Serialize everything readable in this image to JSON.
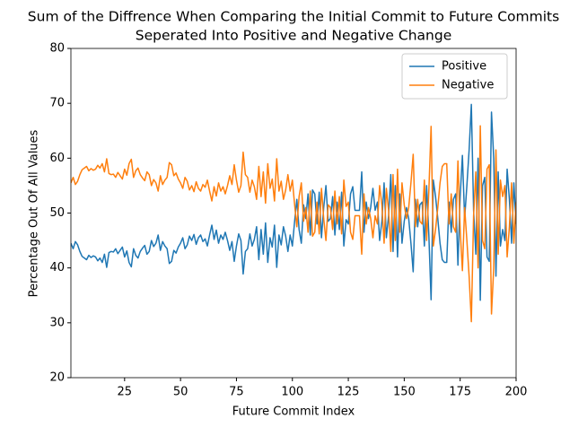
{
  "chart_data": {
    "type": "line",
    "title": "Sum of the Diffrence When Comparing the Initial Commit to Future Commits",
    "subtitle": "Seperated Into Positive and Negative Change",
    "xlabel": "Future Commit Index",
    "ylabel": "Percentage Out Of All Values",
    "xlim": [
      1,
      200
    ],
    "xticks": [
      25,
      50,
      75,
      100,
      125,
      150,
      175,
      200
    ],
    "ylim": [
      20,
      80
    ],
    "yticks": [
      20,
      30,
      40,
      50,
      60,
      70,
      80
    ],
    "legend": "upper right",
    "grid": false,
    "x": [
      1,
      2,
      3,
      4,
      5,
      6,
      7,
      8,
      9,
      10,
      11,
      12,
      13,
      14,
      15,
      16,
      17,
      18,
      19,
      20,
      21,
      22,
      23,
      24,
      25,
      26,
      27,
      28,
      29,
      30,
      31,
      32,
      33,
      34,
      35,
      36,
      37,
      38,
      39,
      40,
      41,
      42,
      43,
      44,
      45,
      46,
      47,
      48,
      49,
      50,
      51,
      52,
      53,
      54,
      55,
      56,
      57,
      58,
      59,
      60,
      61,
      62,
      63,
      64,
      65,
      66,
      67,
      68,
      69,
      70,
      71,
      72,
      73,
      74,
      75,
      76,
      77,
      78,
      79,
      80,
      81,
      82,
      83,
      84,
      85,
      86,
      87,
      88,
      89,
      90,
      91,
      92,
      93,
      94,
      95,
      96,
      97,
      98,
      99,
      100,
      101,
      102,
      103,
      104,
      105,
      106,
      107,
      108,
      109,
      110,
      111,
      112,
      113,
      114,
      115,
      116,
      117,
      118,
      119,
      120,
      121,
      122,
      123,
      124,
      125,
      126,
      127,
      128,
      129,
      130,
      131,
      132,
      133,
      134,
      135,
      136,
      137,
      138,
      139,
      140,
      141,
      142,
      143,
      144,
      145,
      146,
      147,
      148,
      149,
      150,
      151,
      152,
      153,
      154,
      155,
      156,
      157,
      158,
      159,
      160,
      161,
      162,
      163,
      164,
      165,
      166,
      167,
      168,
      169,
      170,
      171,
      172,
      173,
      174,
      175,
      176,
      177,
      178,
      179,
      180,
      181,
      182,
      183,
      184,
      185,
      186,
      187,
      188,
      189,
      190,
      191,
      192,
      193,
      194,
      195,
      196,
      197,
      198,
      199,
      200
    ],
    "series": [
      {
        "name": "Positive",
        "color": "#1f77b4",
        "values": [
          44.5,
          43.5,
          44.8,
          44.2,
          43.0,
          42.1,
          41.8,
          41.5,
          42.3,
          41.9,
          42.2,
          42.0,
          41.3,
          41.8,
          41.0,
          42.5,
          40.1,
          42.8,
          43.0,
          42.9,
          43.5,
          42.6,
          43.2,
          43.8,
          42.0,
          43.1,
          41.0,
          40.2,
          43.5,
          42.3,
          41.8,
          43.0,
          43.6,
          44.1,
          42.5,
          43.0,
          45.0,
          43.9,
          44.5,
          46.0,
          43.2,
          44.8,
          44.0,
          43.5,
          40.8,
          41.2,
          43.2,
          42.7,
          43.8,
          44.5,
          45.5,
          43.5,
          44.2,
          45.8,
          45.0,
          46.1,
          44.3,
          45.5,
          46.0,
          44.8,
          45.3,
          44.0,
          46.0,
          47.8,
          45.2,
          46.9,
          44.5,
          46.0,
          45.2,
          46.5,
          45.0,
          43.2,
          44.8,
          41.2,
          44.0,
          46.2,
          45.0,
          38.9,
          43.0,
          43.5,
          46.2,
          44.0,
          45.2,
          47.5,
          41.5,
          47.0,
          42.5,
          48.2,
          41.0,
          45.5,
          43.8,
          47.8,
          40.1,
          46.0,
          44.2,
          47.5,
          45.8,
          43.0,
          46.0,
          44.0,
          48.5,
          52.5,
          47.0,
          44.5,
          51.5,
          49.0,
          53.5,
          46.0,
          54.2,
          53.5,
          48.0,
          53.8,
          45.5,
          51.0,
          55.0,
          48.5,
          49.0,
          53.0,
          46.0,
          52.0,
          47.0,
          53.8,
          44.0,
          48.8,
          48.0,
          53.5,
          54.8,
          50.5,
          50.5,
          50.5,
          57.5,
          46.5,
          52.0,
          49.0,
          51.0,
          54.5,
          50.5,
          52.0,
          45.0,
          48.5,
          55.5,
          45.5,
          49.5,
          57.0,
          43.0,
          55.0,
          42.0,
          53.5,
          44.5,
          48.5,
          51.0,
          49.0,
          44.5,
          39.3,
          52.5,
          47.5,
          51.5,
          52.0,
          44.0,
          55.0,
          46.0,
          34.2,
          56.0,
          53.0,
          49.0,
          44.5,
          41.5,
          41.0,
          41.0,
          52.0,
          46.5,
          52.5,
          53.5,
          40.5,
          53.0,
          60.5,
          49.0,
          55.0,
          61.5,
          69.8,
          50.5,
          42.5,
          60.0,
          34.1,
          55.0,
          56.5,
          42.0,
          41.2,
          68.4,
          60.0,
          38.5,
          57.5,
          44.0,
          47.0,
          45.0,
          58.0,
          52.5,
          44.5,
          55.5,
          48.0
        ]
      },
      {
        "name": "Negative",
        "color": "#ff7f0e",
        "values": [
          55.5,
          56.5,
          55.2,
          55.8,
          57.0,
          57.9,
          58.2,
          58.5,
          57.7,
          58.1,
          57.8,
          58.0,
          58.7,
          58.2,
          59.0,
          57.5,
          59.9,
          57.2,
          57.0,
          57.1,
          56.5,
          57.4,
          56.8,
          56.2,
          58.0,
          56.9,
          59.0,
          59.8,
          56.5,
          57.7,
          58.2,
          57.0,
          56.4,
          55.9,
          57.5,
          57.0,
          55.0,
          56.1,
          55.5,
          54.0,
          56.8,
          55.2,
          56.0,
          56.5,
          59.2,
          58.8,
          56.8,
          57.3,
          56.2,
          55.5,
          54.5,
          56.5,
          55.8,
          54.2,
          55.0,
          53.9,
          55.7,
          54.5,
          54.0,
          55.2,
          54.7,
          56.0,
          54.0,
          52.2,
          54.8,
          53.1,
          55.5,
          54.0,
          54.8,
          53.5,
          55.0,
          56.8,
          55.2,
          58.8,
          56.0,
          53.8,
          55.0,
          61.1,
          57.0,
          56.5,
          53.8,
          56.0,
          54.8,
          52.5,
          58.5,
          53.0,
          57.5,
          51.8,
          59.0,
          54.5,
          56.2,
          52.2,
          59.9,
          54.0,
          55.8,
          52.5,
          54.2,
          57.0,
          54.0,
          56.0,
          51.5,
          47.5,
          53.0,
          55.5,
          48.5,
          51.0,
          46.5,
          54.0,
          45.8,
          46.5,
          52.0,
          46.2,
          54.5,
          49.0,
          45.0,
          51.5,
          51.0,
          47.0,
          54.0,
          48.0,
          53.0,
          46.2,
          56.0,
          51.2,
          52.0,
          46.5,
          45.2,
          49.5,
          49.5,
          49.5,
          42.5,
          53.5,
          48.0,
          51.0,
          49.0,
          45.5,
          49.5,
          48.0,
          55.0,
          51.5,
          44.5,
          54.5,
          50.5,
          43.0,
          57.0,
          45.0,
          58.0,
          46.5,
          55.5,
          51.5,
          49.0,
          51.0,
          55.5,
          60.7,
          47.5,
          52.5,
          48.5,
          48.0,
          56.0,
          45.0,
          54.0,
          65.8,
          44.0,
          47.0,
          51.0,
          55.5,
          58.5,
          59.0,
          59.0,
          48.0,
          53.5,
          47.5,
          46.5,
          59.5,
          47.0,
          39.5,
          51.0,
          45.0,
          38.5,
          30.2,
          49.5,
          57.5,
          40.0,
          65.9,
          45.0,
          43.5,
          58.0,
          58.8,
          31.6,
          40.0,
          61.5,
          42.5,
          56.0,
          53.0,
          55.0,
          42.0,
          47.5,
          55.5,
          44.5,
          52.0
        ]
      }
    ]
  }
}
